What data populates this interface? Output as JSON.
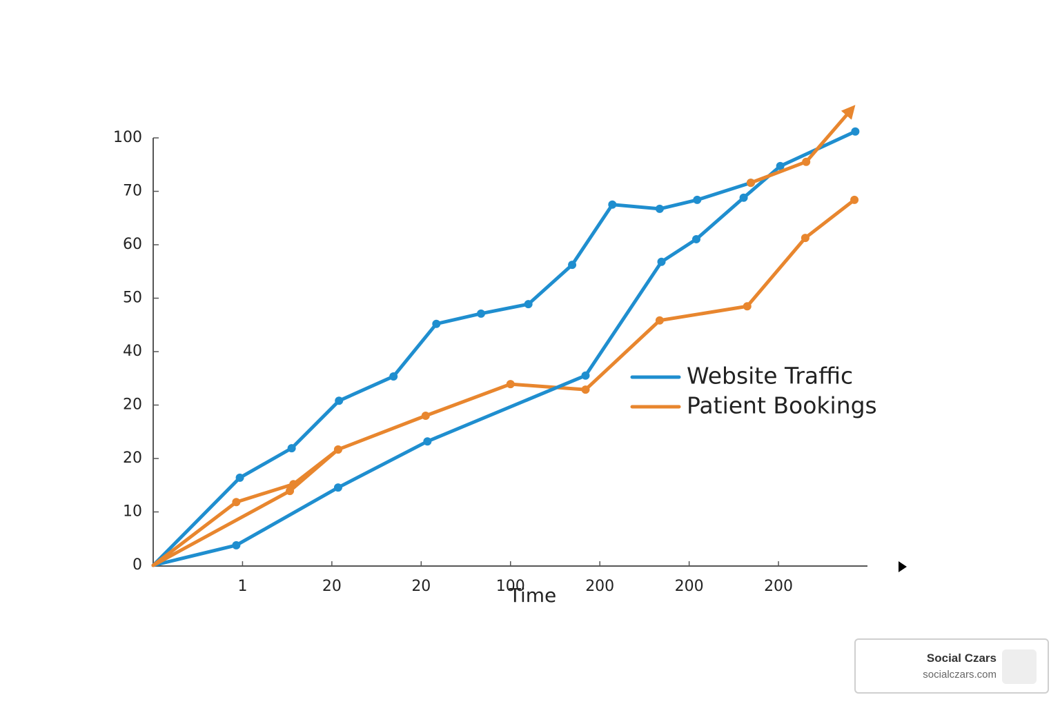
{
  "chart_data": {
    "type": "line",
    "xlabel": "Time",
    "xlim": [
      0,
      8
    ],
    "xticks": [
      1,
      {
        "value": 2,
        "label": "20"
      },
      {
        "value": 3,
        "label": "20"
      },
      {
        "value": 4,
        "label": "100"
      },
      {
        "value": 5,
        "label": "200"
      },
      {
        "value": 6,
        "label": "200"
      },
      {
        "value": 7,
        "label": "200"
      }
    ],
    "ylim": [
      0,
      100
    ],
    "yticks": [
      0,
      {
        "value": 12.5,
        "label": "10"
      },
      {
        "value": 25,
        "label": "20"
      },
      {
        "value": 37.5,
        "label": "20"
      },
      {
        "value": 50,
        "label": "40"
      },
      {
        "value": 62.5,
        "label": "50"
      },
      {
        "value": 75,
        "label": "60"
      },
      {
        "value": 87.5,
        "label": "70"
      },
      100
    ],
    "legend": "right",
    "series": [
      {
        "name": "Website Traffic",
        "color": "#1f8ecf",
        "x": [
          0,
          0.97,
          1.55,
          2.08,
          2.69,
          3.17,
          3.67,
          4.2,
          4.69,
          5.14,
          5.67,
          6.09,
          6.69
        ],
        "values": [
          0,
          20.5,
          27.4,
          38.5,
          44.2,
          56.5,
          58.9,
          61.1,
          70.3,
          84.4,
          83.4,
          85.5,
          89.5
        ]
      },
      {
        "name": "Patient Bookings",
        "color": "#e8862e",
        "x": [
          0,
          0.93,
          1.57,
          2.07,
          3.05,
          4.0,
          4.84,
          5.67,
          6.65,
          7.3,
          7.85
        ],
        "values": [
          0,
          14.8,
          19.0,
          27.1,
          35.0,
          42.4,
          41.1,
          57.3,
          60.6,
          76.6,
          85.5
        ]
      },
      {
        "color": "#1f8ecf",
        "x": [
          0,
          0.93,
          2.07,
          3.07,
          4.84,
          5.69,
          6.08,
          6.61,
          7.02,
          7.86
        ],
        "values": [
          0,
          4.7,
          18.2,
          29.0,
          44.4,
          71.0,
          76.3,
          86.0,
          93.4,
          101.5
        ]
      },
      {
        "color": "#e8862e",
        "arrow_end": true,
        "x": [
          0,
          1.53,
          2.07,
          null,
          6.69,
          7.31,
          7.81
        ],
        "values": [
          0,
          17.4,
          27.1,
          null,
          89.5,
          94.4,
          106.5
        ]
      }
    ]
  },
  "watermark": {
    "title": "Social Czars",
    "url": "socialczars.com"
  }
}
